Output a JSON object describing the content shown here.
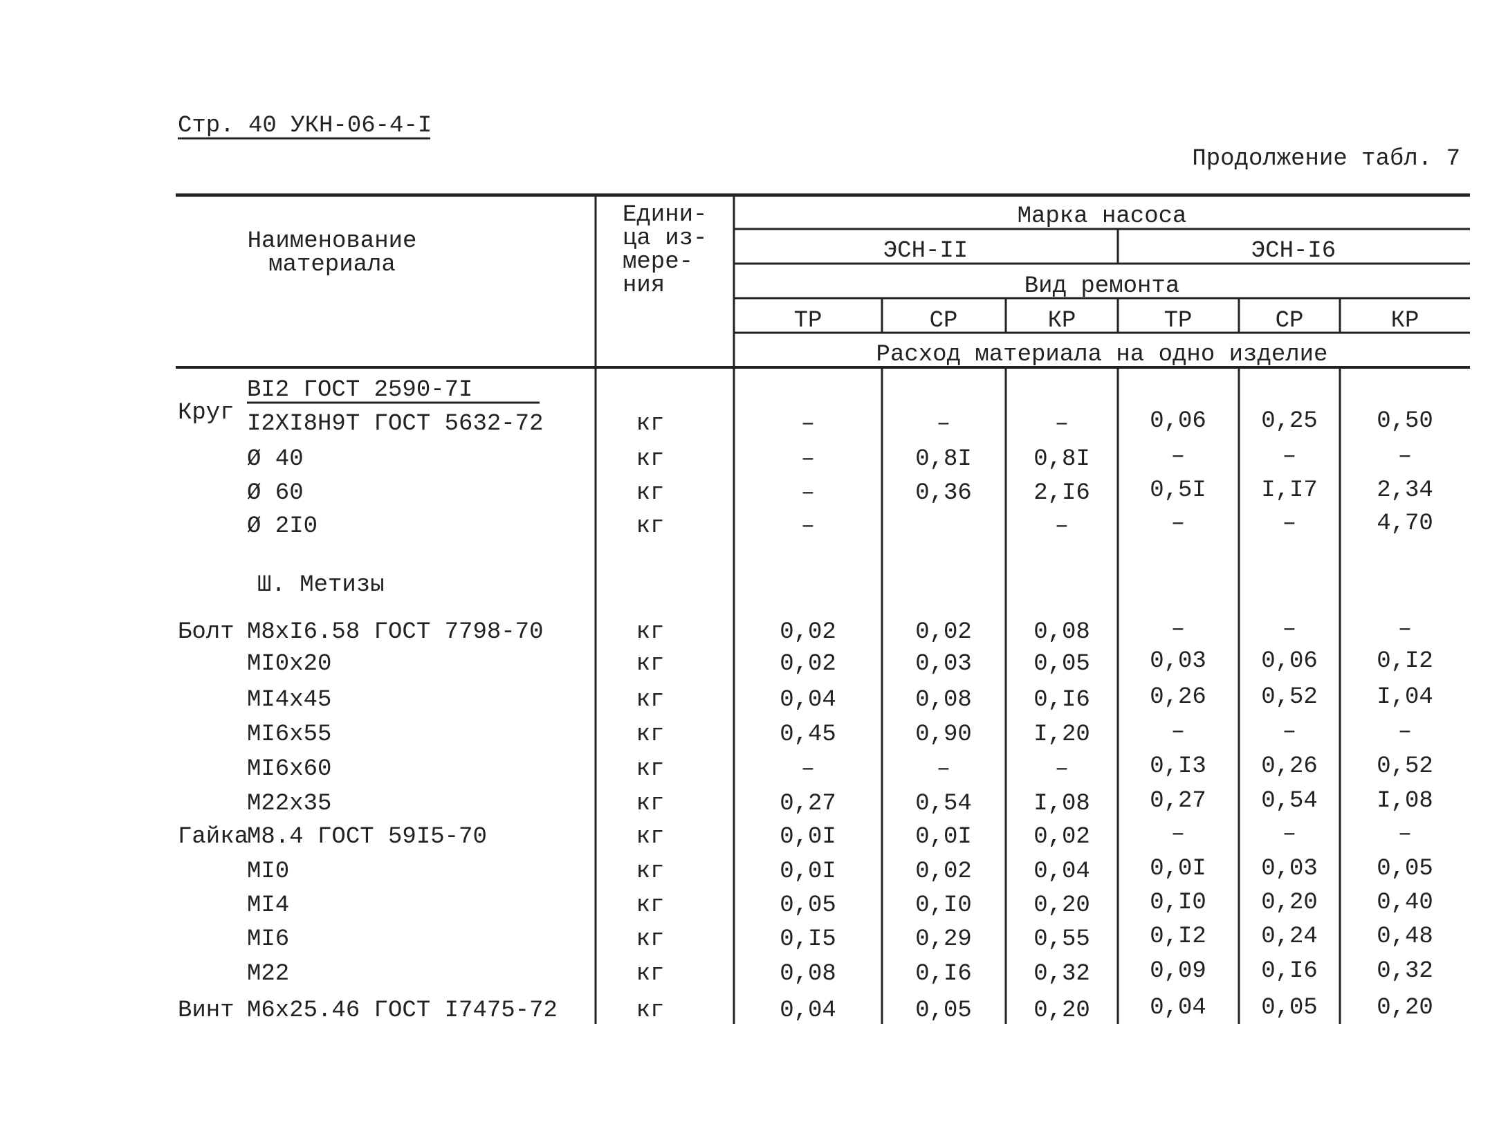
{
  "header": {
    "page_ref": "Стр. 40 УКН-06-4-I",
    "continuation": "Продолжение табл. 7"
  },
  "table": {
    "head": {
      "name": [
        "Наименование",
        "материала"
      ],
      "unit": [
        "Едини-",
        "ца из-",
        "мере-",
        "ния"
      ],
      "brand": "Марка насоса",
      "pumps": [
        "ЭСН-II",
        "ЭСН-I6"
      ],
      "repair": "Вид ремонта",
      "repair_types": [
        "ТР",
        "СР",
        "КР",
        "ТР",
        "СР",
        "КР"
      ],
      "consumption": "Расход материала на одно изделие"
    },
    "rows": [
      {
        "lead": "Круг",
        "over": "ВI2 ГОСТ 2590-7I",
        "name": "I2ХI8Н9Т ГОСТ 5632-72",
        "unit": "кг",
        "values": [
          "–",
          "–",
          "–",
          "0,06",
          "0,25",
          "0,50"
        ]
      },
      {
        "name": "Ø 40",
        "unit": "кг",
        "values": [
          "–",
          "0,8I",
          "0,8I",
          "–",
          "–",
          "–"
        ]
      },
      {
        "name": "Ø 60",
        "unit": "кг",
        "values": [
          "–",
          "0,36",
          "2,I6",
          "0,5I",
          "I,I7",
          "2,34"
        ]
      },
      {
        "name": "Ø 2I0",
        "unit": "кг",
        "values": [
          "–",
          null,
          "–",
          "–",
          "–",
          "4,70"
        ]
      },
      {
        "section": "Ш. Метизы"
      },
      {
        "lead": "Болт",
        "name": "М8хI6.58 ГОСТ 7798-70",
        "unit": "кг",
        "values": [
          "0,02",
          "0,02",
          "0,08",
          "–",
          "–",
          "–"
        ]
      },
      {
        "name": "МI0х20",
        "unit": "кг",
        "values": [
          "0,02",
          "0,03",
          "0,05",
          "0,03",
          "0,06",
          "0,I2"
        ]
      },
      {
        "name": "МI4х45",
        "unit": "кг",
        "values": [
          "0,04",
          "0,08",
          "0,I6",
          "0,26",
          "0,52",
          "I,04"
        ]
      },
      {
        "name": "МI6х55",
        "unit": "кг",
        "values": [
          "0,45",
          "0,90",
          "I,20",
          "–",
          "–",
          "–"
        ]
      },
      {
        "name": "МI6х60",
        "unit": "кг",
        "values": [
          "–",
          "–",
          "–",
          "0,I3",
          "0,26",
          "0,52"
        ]
      },
      {
        "name": "М22х35",
        "unit": "кг",
        "values": [
          "0,27",
          "0,54",
          "I,08",
          "0,27",
          "0,54",
          "I,08"
        ]
      },
      {
        "lead": "Гайка",
        "name": "М8.4 ГОСТ 59I5-70",
        "unit": "кг",
        "values": [
          "0,0I",
          "0,0I",
          "0,02",
          "–",
          "–",
          "–"
        ]
      },
      {
        "name": "МI0",
        "unit": "кг",
        "values": [
          "0,0I",
          "0,02",
          "0,04",
          "0,0I",
          "0,03",
          "0,05"
        ]
      },
      {
        "name": "МI4",
        "unit": "кг",
        "values": [
          "0,05",
          "0,I0",
          "0,20",
          "0,I0",
          "0,20",
          "0,40"
        ]
      },
      {
        "name": "МI6",
        "unit": "кг",
        "values": [
          "0,I5",
          "0,29",
          "0,55",
          "0,I2",
          "0,24",
          "0,48"
        ]
      },
      {
        "name": "М22",
        "unit": "кг",
        "values": [
          "0,08",
          "0,I6",
          "0,32",
          "0,09",
          "0,I6",
          "0,32"
        ]
      },
      {
        "lead": "Винт",
        "name": "М6х25.46 ГОСТ I7475-72",
        "unit": "кг",
        "values": [
          "0,04",
          "0,05",
          "0,20",
          "0,04",
          "0,05",
          "0,20"
        ]
      }
    ]
  }
}
